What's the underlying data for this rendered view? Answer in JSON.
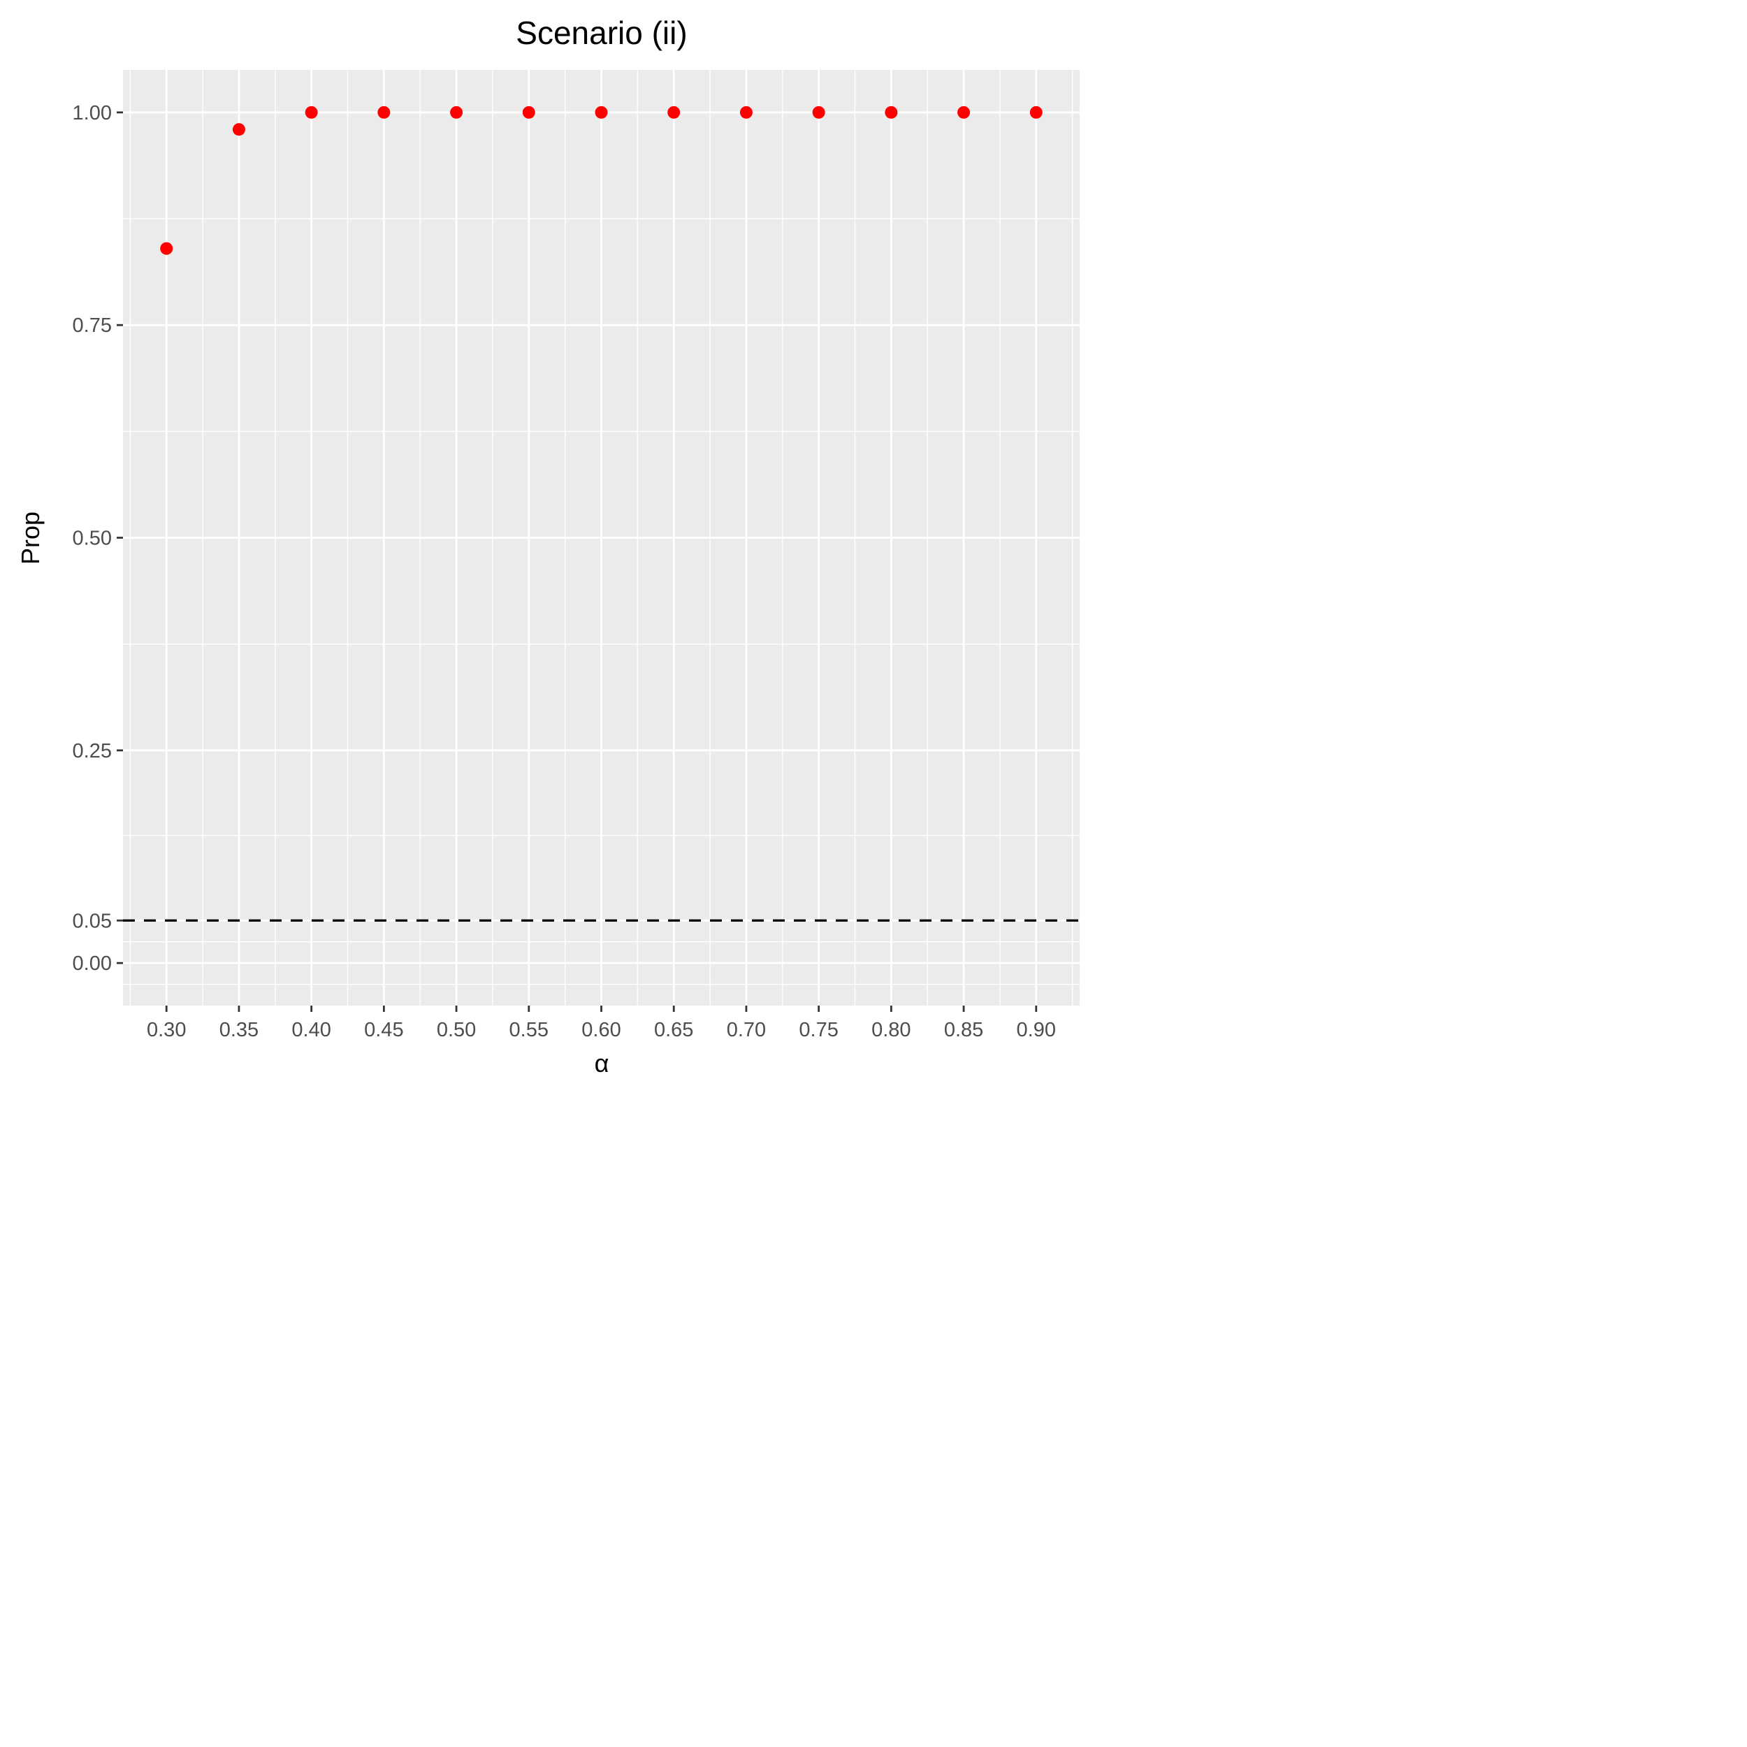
{
  "chart_data": {
    "type": "scatter",
    "title": "Scenario (ii)",
    "xlabel": "α",
    "ylabel": "Prop",
    "x": [
      0.3,
      0.35,
      0.4,
      0.45,
      0.5,
      0.55,
      0.6,
      0.65,
      0.7,
      0.75,
      0.8,
      0.85,
      0.9
    ],
    "y": [
      0.84,
      0.98,
      1.0,
      1.0,
      1.0,
      1.0,
      1.0,
      1.0,
      1.0,
      1.0,
      1.0,
      1.0,
      1.0
    ],
    "xlim": [
      0.27,
      0.93
    ],
    "ylim": [
      -0.05,
      1.05
    ],
    "x_ticks": [
      "0.30",
      "0.35",
      "0.40",
      "0.45",
      "0.50",
      "0.55",
      "0.60",
      "0.65",
      "0.70",
      "0.75",
      "0.80",
      "0.85",
      "0.90"
    ],
    "y_ticks": [
      "0.00",
      "0.05",
      "0.25",
      "0.50",
      "0.75",
      "1.00"
    ],
    "y_tick_values": [
      0.0,
      0.05,
      0.25,
      0.5,
      0.75,
      1.0
    ],
    "y_minor_gridlines": [
      0.125,
      0.375,
      0.625,
      0.875
    ],
    "reference_line": {
      "y": 0.05,
      "style": "dashed",
      "color": "#000000"
    },
    "point_color": "#ff0000",
    "panel_background": "#ebebeb",
    "grid": true
  }
}
